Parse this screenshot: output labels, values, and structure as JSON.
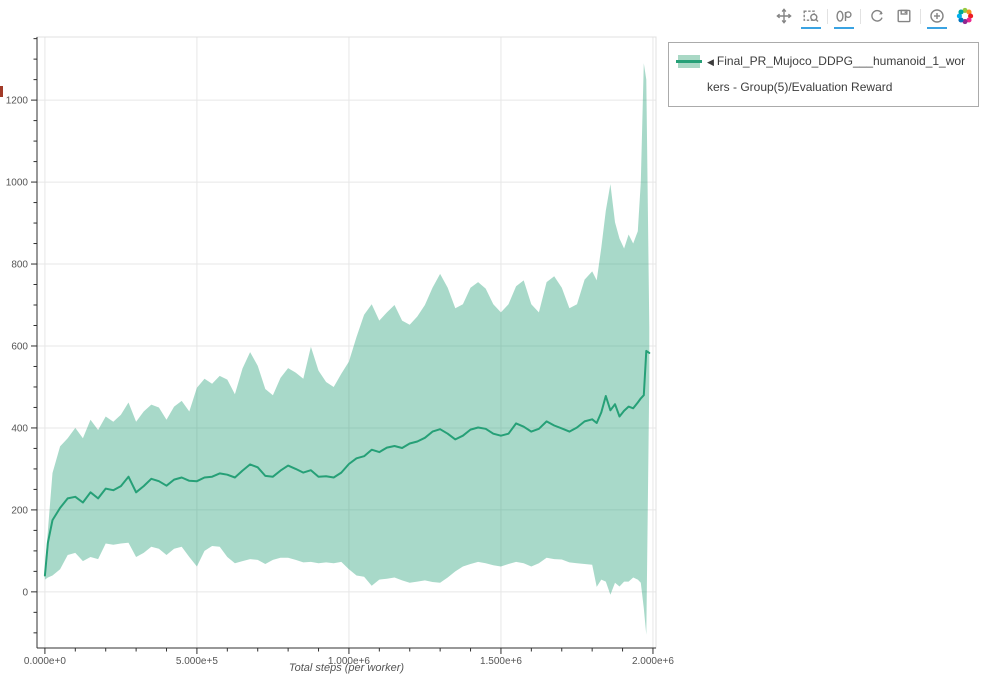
{
  "toolbar": {
    "tools": [
      {
        "name": "pan",
        "active": false
      },
      {
        "name": "box-zoom",
        "active": true
      },
      {
        "name": "wheel-zoom",
        "active": true
      },
      {
        "name": "reset",
        "active": false
      },
      {
        "name": "save",
        "active": false
      },
      {
        "name": "hover",
        "active": true
      }
    ],
    "separators_after": [
      "box-zoom",
      "wheel-zoom",
      "save"
    ],
    "logo": "bokeh-logo"
  },
  "legend": {
    "marker": "◀",
    "label": "Final_PR_Mujoco_DDPG___humanoid_1_workers - Group(5)/Evaluation Reward"
  },
  "colors": {
    "line": "#26a077",
    "band": "rgba(38,160,119,0.40)",
    "active_tool_underline": "#3aa3e2",
    "axis": "#303030",
    "grid": "#e7e7e7",
    "tick_label": "#555555"
  },
  "chart_data": {
    "type": "line",
    "title": "",
    "xlabel": "Total steps (per worker)",
    "ylabel": "",
    "grid": true,
    "legend_position": "top-right-outside",
    "xlim": [
      -26000,
      2010000
    ],
    "ylim": [
      -137,
      1354
    ],
    "x_ticks": {
      "values": [
        0,
        500000,
        1000000,
        1500000,
        2000000
      ],
      "labels": [
        "0.000e+0",
        "5.000e+5",
        "1.000e+6",
        "1.500e+6",
        "2.000e+6"
      ],
      "minor_step": 100000
    },
    "y_ticks": {
      "values": [
        0,
        200,
        400,
        600,
        800,
        1000,
        1200
      ],
      "labels": [
        "0",
        "200",
        "400",
        "600",
        "800",
        "1000",
        "1200"
      ],
      "minor_step": 50
    },
    "series": [
      {
        "name": "Final_PR_Mujoco_DDPG___humanoid_1_workers - Group(5)/Evaluation Reward",
        "color": "#26a077",
        "band_color": "rgba(38,160,119,0.40)",
        "x": [
          0,
          10000,
          25000,
          50000,
          75000,
          100000,
          125000,
          150000,
          175000,
          200000,
          225000,
          250000,
          275000,
          300000,
          325000,
          350000,
          375000,
          400000,
          425000,
          450000,
          475000,
          500000,
          525000,
          550000,
          575000,
          600000,
          625000,
          650000,
          675000,
          700000,
          725000,
          750000,
          775000,
          800000,
          825000,
          850000,
          875000,
          900000,
          925000,
          950000,
          975000,
          1000000,
          1025000,
          1050000,
          1075000,
          1100000,
          1125000,
          1150000,
          1175000,
          1200000,
          1225000,
          1250000,
          1275000,
          1300000,
          1325000,
          1350000,
          1375000,
          1400000,
          1425000,
          1450000,
          1475000,
          1500000,
          1525000,
          1550000,
          1575000,
          1600000,
          1625000,
          1650000,
          1675000,
          1700000,
          1725000,
          1750000,
          1775000,
          1800000,
          1815000,
          1830000,
          1845000,
          1860000,
          1875000,
          1890000,
          1905000,
          1920000,
          1935000,
          1950000,
          1960000,
          1970000,
          1978000,
          1988000
        ],
        "mean": [
          40,
          120,
          175,
          205,
          228,
          232,
          218,
          243,
          228,
          252,
          248,
          258,
          281,
          243,
          258,
          276,
          270,
          259,
          274,
          279,
          271,
          270,
          279,
          281,
          289,
          286,
          279,
          296,
          311,
          304,
          283,
          281,
          296,
          308,
          300,
          291,
          297,
          281,
          282,
          279,
          291,
          312,
          326,
          331,
          347,
          341,
          352,
          356,
          351,
          362,
          367,
          376,
          391,
          397,
          386,
          372,
          381,
          396,
          401,
          398,
          386,
          381,
          386,
          411,
          403,
          391,
          398,
          416,
          406,
          399,
          391,
          401,
          416,
          421,
          412,
          438,
          478,
          443,
          458,
          428,
          442,
          452,
          448,
          462,
          472,
          480,
          588,
          583
        ],
        "lower": [
          30,
          35,
          40,
          55,
          90,
          95,
          75,
          85,
          80,
          118,
          115,
          118,
          120,
          85,
          95,
          110,
          105,
          90,
          105,
          110,
          85,
          62,
          100,
          112,
          110,
          85,
          70,
          75,
          80,
          78,
          68,
          78,
          83,
          83,
          78,
          72,
          73,
          70,
          72,
          70,
          73,
          55,
          40,
          37,
          15,
          30,
          32,
          35,
          28,
          22,
          25,
          28,
          24,
          22,
          35,
          50,
          62,
          68,
          73,
          70,
          65,
          62,
          68,
          73,
          70,
          62,
          70,
          83,
          80,
          79,
          72,
          70,
          68,
          66,
          12,
          30,
          25,
          -7,
          22,
          13,
          25,
          25,
          35,
          30,
          22,
          -40,
          -105,
          520
        ],
        "upper": [
          55,
          150,
          290,
          355,
          375,
          400,
          375,
          420,
          395,
          428,
          415,
          432,
          462,
          415,
          440,
          457,
          450,
          420,
          452,
          466,
          440,
          498,
          520,
          508,
          527,
          518,
          482,
          545,
          585,
          552,
          495,
          480,
          522,
          546,
          535,
          520,
          598,
          540,
          512,
          500,
          532,
          562,
          622,
          676,
          702,
          662,
          682,
          700,
          662,
          652,
          672,
          700,
          742,
          776,
          742,
          692,
          702,
          742,
          756,
          740,
          702,
          682,
          702,
          746,
          760,
          702,
          682,
          756,
          770,
          742,
          692,
          702,
          762,
          782,
          760,
          840,
          930,
          995,
          902,
          862,
          838,
          872,
          850,
          880,
          1000,
          1290,
          1250,
          645
        ]
      }
    ]
  }
}
